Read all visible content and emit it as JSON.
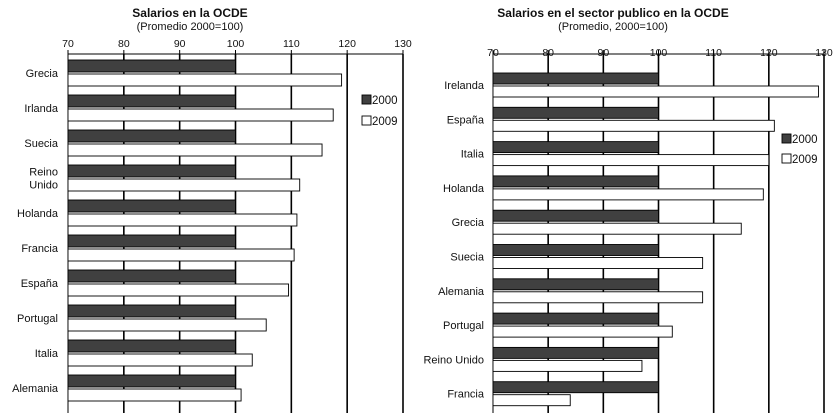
{
  "chart_data": [
    {
      "type": "bar",
      "orientation": "horizontal",
      "title": "Salarios en la OCDE",
      "subtitle": "(Promedio 2000=100)",
      "xlim": [
        70,
        130
      ],
      "xticks": [
        70,
        80,
        90,
        100,
        110,
        120,
        130
      ],
      "categories": [
        "Grecia",
        "Irlanda",
        "Suecia",
        "Reino Unido",
        "Holanda",
        "Francia",
        "España",
        "Portugal",
        "Italia",
        "Alemania"
      ],
      "category_lines": [
        [
          "Grecia"
        ],
        [
          "Irlanda"
        ],
        [
          "Suecia"
        ],
        [
          "Reino",
          "Unido"
        ],
        [
          "Holanda"
        ],
        [
          "Francia"
        ],
        [
          "España"
        ],
        [
          "Portugal"
        ],
        [
          "Italia"
        ],
        [
          "Alemania"
        ]
      ],
      "series": [
        {
          "name": "2000",
          "color": "#404040",
          "values": [
            100,
            100,
            100,
            100,
            100,
            100,
            100,
            100,
            100,
            100
          ]
        },
        {
          "name": "2009",
          "color": "#ffffff",
          "values": [
            119,
            117.5,
            115.5,
            111.5,
            111,
            110.5,
            109.5,
            105.5,
            103,
            101
          ]
        }
      ],
      "legend_position": "right",
      "grid": true
    },
    {
      "type": "bar",
      "orientation": "horizontal",
      "title": "Salarios en el sector publico en la OCDE",
      "subtitle": "(Promedio, 2000=100)",
      "xlim": [
        70,
        130
      ],
      "xticks": [
        70,
        80,
        90,
        100,
        110,
        120,
        130
      ],
      "categories": [
        "Irelanda",
        "España",
        "Italia",
        "Holanda",
        "Grecia",
        "Suecia",
        "Alemania",
        "Portugal",
        "Reino Unido",
        "Francia"
      ],
      "category_lines": [
        [
          "Irelanda"
        ],
        [
          "España"
        ],
        [
          "Italia"
        ],
        [
          "Holanda"
        ],
        [
          "Grecia"
        ],
        [
          "Suecia"
        ],
        [
          "Alemania"
        ],
        [
          "Portugal"
        ],
        [
          "Reino Unido"
        ],
        [
          "Francia"
        ]
      ],
      "series": [
        {
          "name": "2000",
          "color": "#404040",
          "values": [
            100,
            100,
            100,
            100,
            100,
            100,
            100,
            100,
            100,
            100
          ]
        },
        {
          "name": "2009",
          "color": "#ffffff",
          "values": [
            129,
            121,
            120,
            119,
            115,
            108,
            108,
            102.5,
            97,
            84
          ]
        }
      ],
      "legend_position": "right",
      "grid": true
    }
  ]
}
